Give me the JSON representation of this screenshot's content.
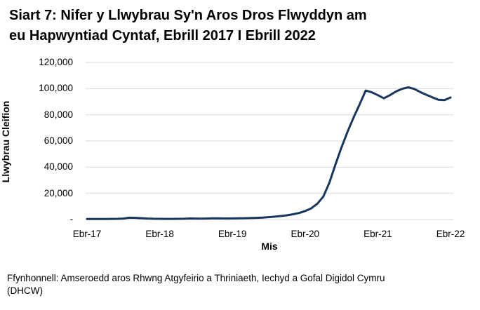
{
  "header": {
    "title_line1": "Siart 7: Nifer y Llwybrau Sy'n Aros Dros Flwyddyn am",
    "title_line2": "eu Hapwyntiad Cyntaf, Ebrill 2017 I Ebrill 2022"
  },
  "chart_data": {
    "type": "line",
    "title": "Siart 7: Nifer y Llwybrau Sy'n Aros Dros Flwyddyn am eu Hapwyntiad Cyntaf, Ebrill 2017 I Ebrill 2022",
    "xlabel": "Mis",
    "ylabel": "Llwybrau Cleifion",
    "x_frequency": "monthly",
    "x_range": [
      "Ebr-17",
      "Ebr-22"
    ],
    "x_tick_labels": [
      "Ebr-17",
      "Ebr-18",
      "Ebr-19",
      "Ebr-20",
      "Ebr-21",
      "Ebr-22"
    ],
    "y_tick_labels": [
      "-",
      "20,000",
      "40,000",
      "60,000",
      "80,000",
      "100,000",
      "120,000"
    ],
    "ylim": [
      0,
      120000
    ],
    "grid": "horizontal",
    "legend": "none",
    "line_color": "#17365d",
    "grid_color": "#d9d9d9",
    "values": [
      450,
      420,
      400,
      430,
      480,
      550,
      750,
      1400,
      1300,
      1000,
      750,
      600,
      550,
      500,
      500,
      550,
      600,
      800,
      750,
      700,
      780,
      900,
      850,
      820,
      850,
      900,
      1000,
      1100,
      1300,
      1500,
      1800,
      2200,
      2700,
      3200,
      4000,
      5000,
      6500,
      8500,
      12000,
      17500,
      28000,
      42000,
      55000,
      67000,
      78000,
      88000,
      98500,
      97200,
      95000,
      92600,
      95000,
      97800,
      99800,
      101000,
      99800,
      97400,
      95300,
      93300,
      91500,
      91200,
      93200
    ]
  },
  "footer": {
    "line1": "Ffynhonnell: Amseroedd aros Rhwng Atgyfeirio a Thriniaeth, Iechyd a Gofal Digidol Cymru",
    "line2": "(DHCW)"
  },
  "colors": {
    "line": "#17365d",
    "grid": "#d9d9d9",
    "text": "#000000"
  }
}
